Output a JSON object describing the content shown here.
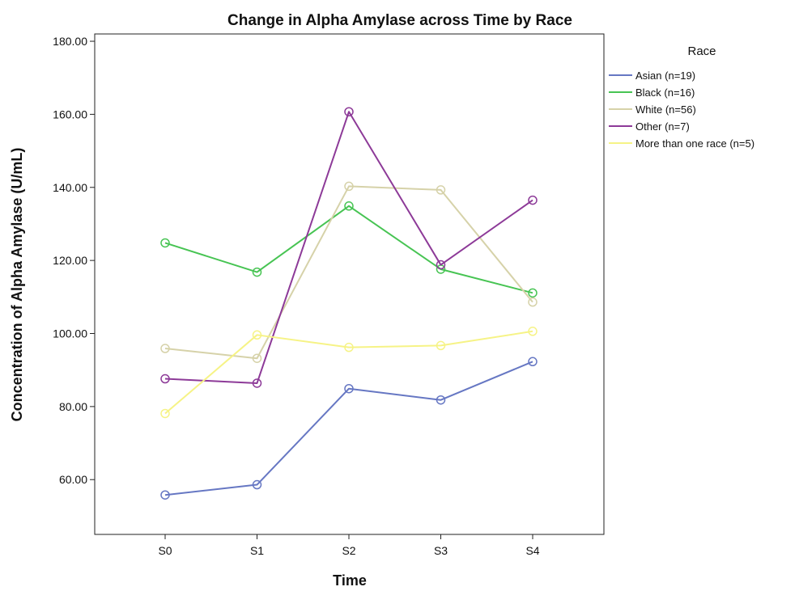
{
  "chart_data": {
    "type": "line",
    "title": "Change in Alpha Amylase across Time by Race",
    "xlabel": "Time",
    "ylabel": "Concentration of Alpha Amylase (U/mL)",
    "categories": [
      "S0",
      "S1",
      "S2",
      "S3",
      "S4"
    ],
    "ylim": [
      45,
      182
    ],
    "yticks": [
      60,
      80,
      100,
      120,
      140,
      160,
      180
    ],
    "ytick_labels": [
      "60.00",
      "80.00",
      "100.00",
      "120.00",
      "140.00",
      "160.00",
      "180.00"
    ],
    "grid": false,
    "markers": "open-circle",
    "legend": {
      "title": "Race",
      "position": "right"
    },
    "series": [
      {
        "name": "Asian (n=19)",
        "color": "#6677c3",
        "values": [
          55.8,
          58.6,
          84.9,
          81.8,
          92.3
        ]
      },
      {
        "name": "Black (n=16)",
        "color": "#47c453",
        "values": [
          124.8,
          116.8,
          134.9,
          117.6,
          111.1
        ]
      },
      {
        "name": "White (n=56)",
        "color": "#d6d2a9",
        "values": [
          95.9,
          93.2,
          140.3,
          139.3,
          108.6
        ]
      },
      {
        "name": "Other (n=7)",
        "color": "#8d3a98",
        "values": [
          87.6,
          86.4,
          160.7,
          118.8,
          136.5
        ]
      },
      {
        "name": "More than one race (n=5)",
        "color": "#f6f386",
        "values": [
          78.1,
          99.6,
          96.2,
          96.7,
          100.6
        ]
      }
    ]
  }
}
